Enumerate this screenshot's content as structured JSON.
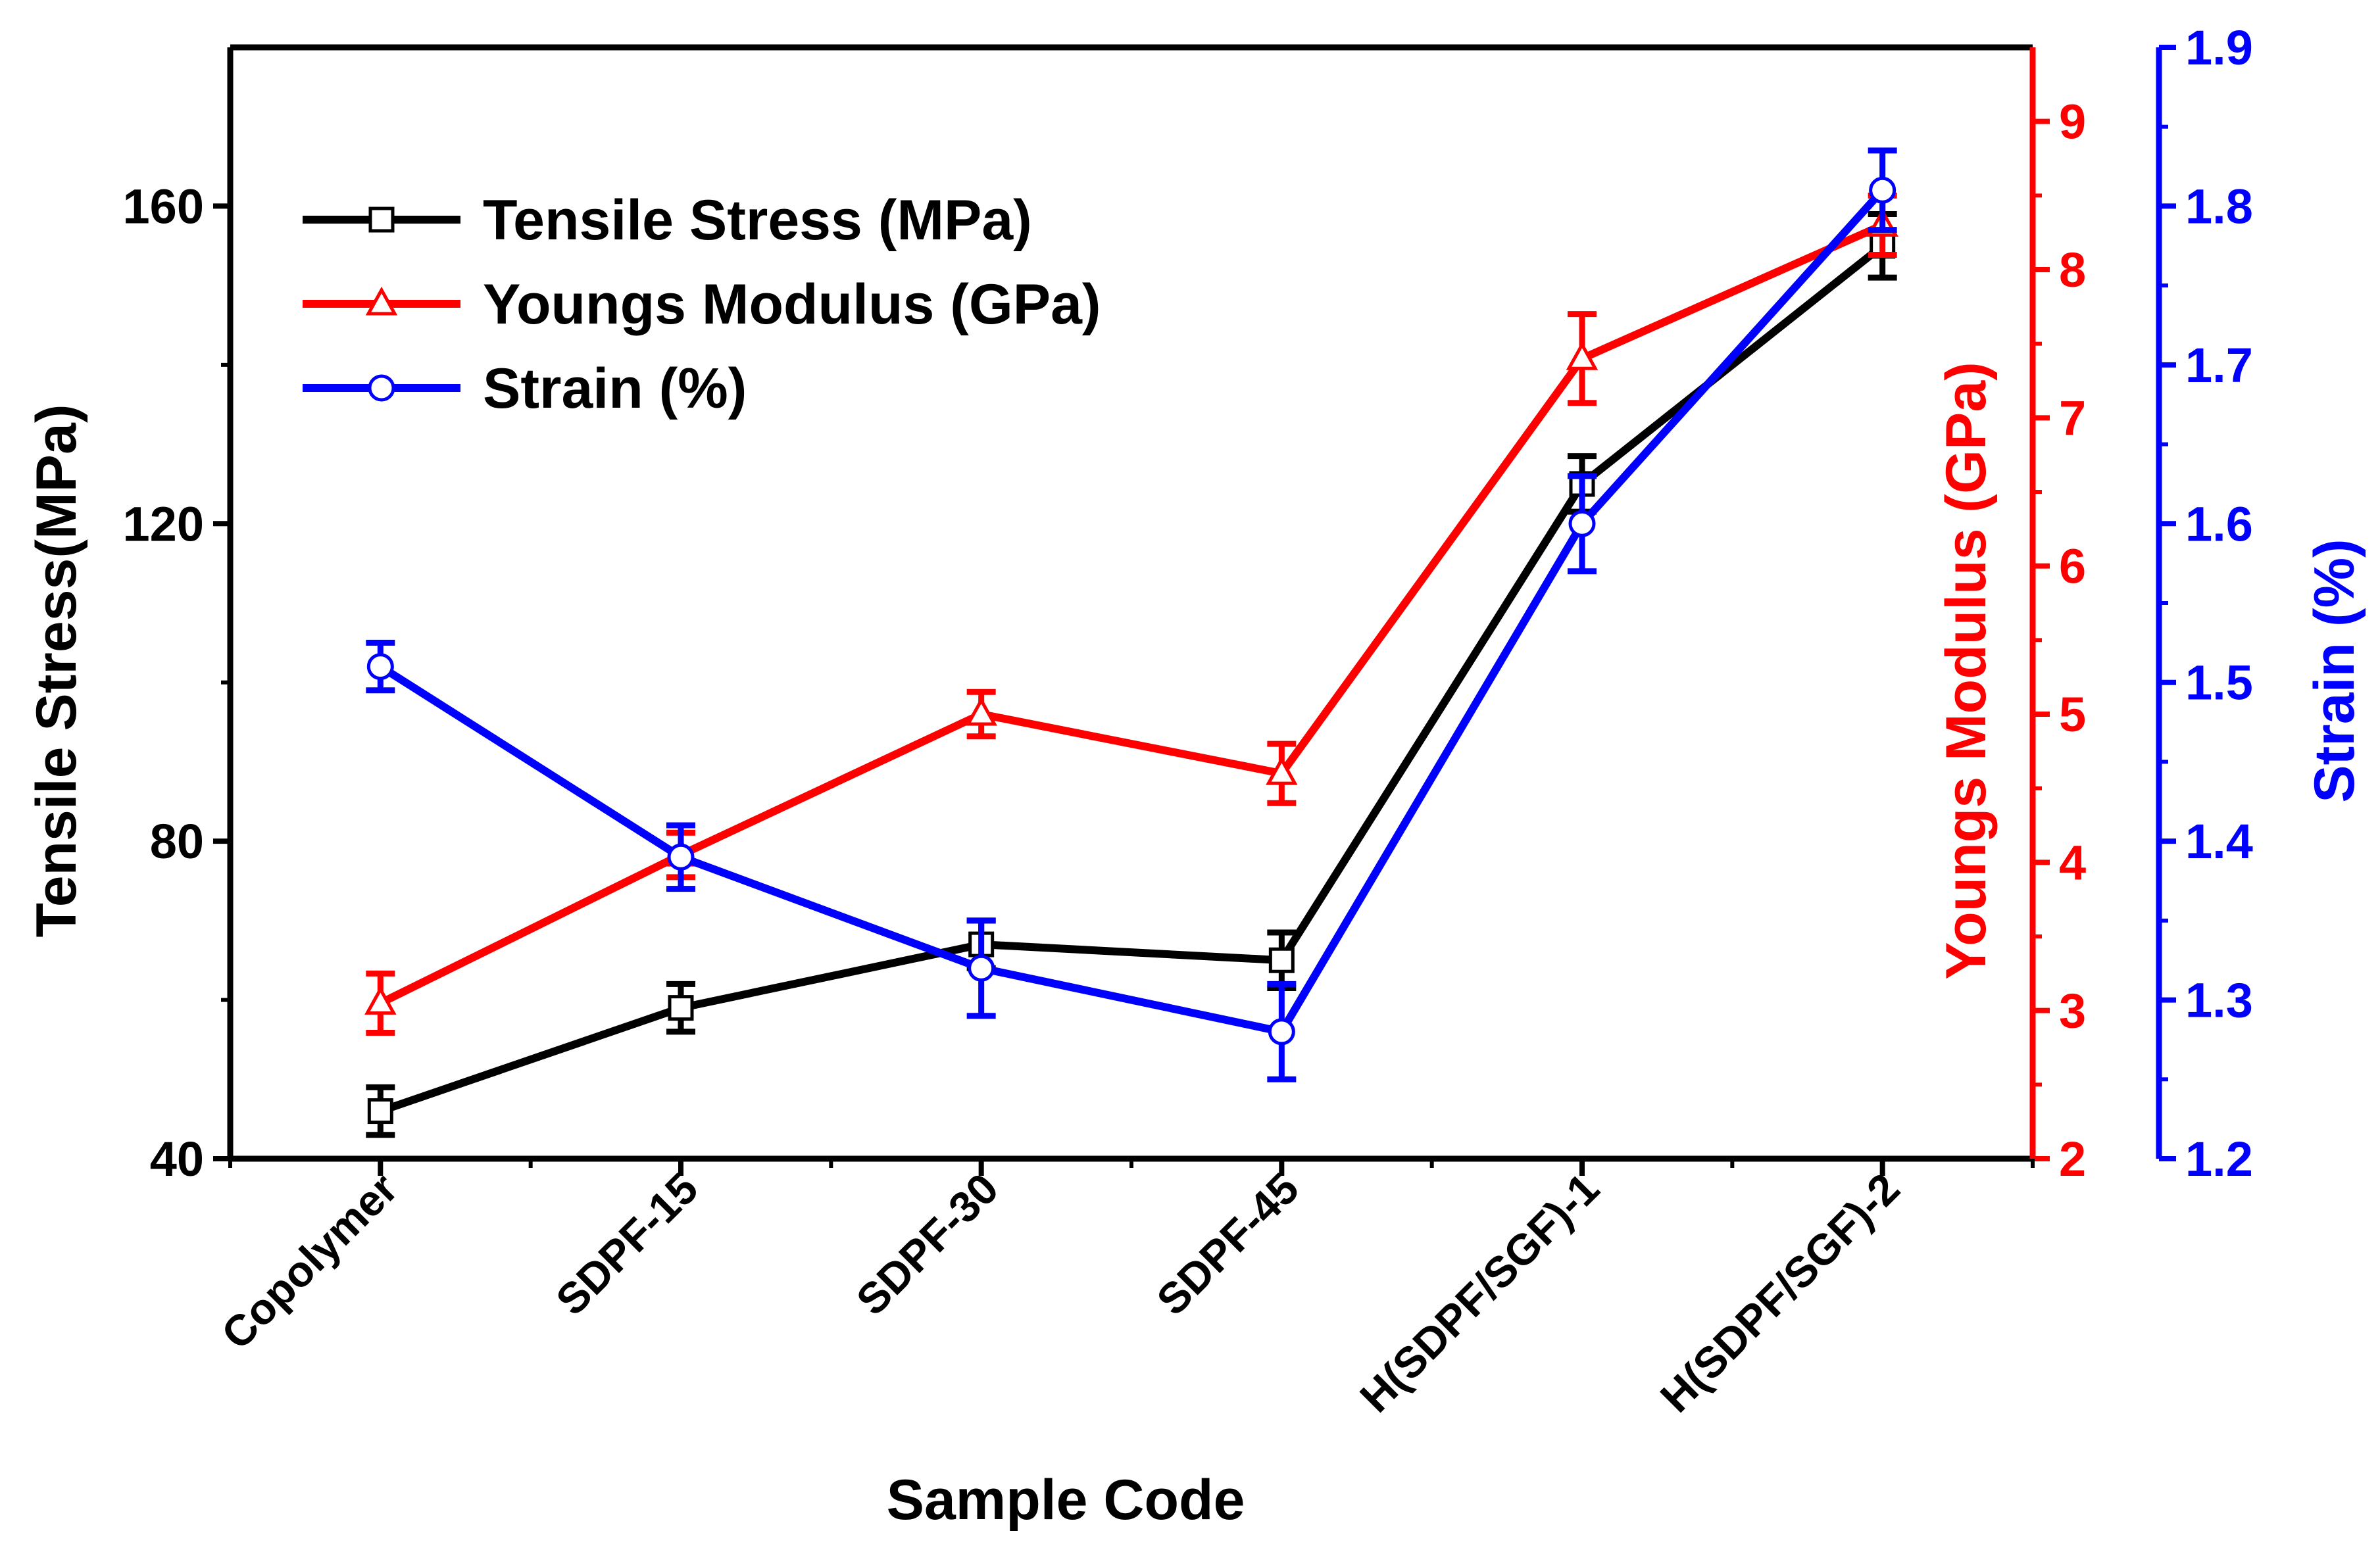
{
  "chart_data": {
    "type": "line",
    "xlabel": "Sample Code",
    "categories": [
      "Copolymer",
      "SDPF-15",
      "SDPF-30",
      "SDPF-45",
      "H(SDPF/SGF)-1",
      "H(SDPF/SGF)-2"
    ],
    "axes": {
      "left": {
        "label": "Tensile Stress(MPa)",
        "range": [
          40,
          180
        ],
        "ticks": [
          40,
          80,
          120,
          160
        ],
        "tick_labels": [
          "40",
          "80",
          "120",
          "160"
        ],
        "color": "#000000"
      },
      "red": {
        "label": "Youngs Modulus (GPa)",
        "range": [
          2,
          9.5
        ],
        "ticks": [
          2,
          3,
          4,
          5,
          6,
          7,
          8,
          9
        ],
        "tick_labels": [
          "2",
          "3",
          "4",
          "5",
          "6",
          "7",
          "8",
          "9"
        ],
        "color": "#ff0000"
      },
      "blue": {
        "label": "Strain (%)",
        "range": [
          1.2,
          1.9
        ],
        "ticks": [
          1.2,
          1.3,
          1.4,
          1.5,
          1.6,
          1.7,
          1.8,
          1.9
        ],
        "tick_labels": [
          "1.2",
          "1.3",
          "1.4",
          "1.5",
          "1.6",
          "1.7",
          "1.8",
          "1.9"
        ],
        "color": "#0000ff"
      }
    },
    "series": [
      {
        "name": "Tensile Stress (MPa)",
        "axis": "left",
        "color": "#000000",
        "marker": "square",
        "values": [
          46,
          59,
          67,
          65,
          125,
          155
        ],
        "errors": [
          3,
          3,
          3,
          3.5,
          3.5,
          4
        ]
      },
      {
        "name": "Youngs Modulus (GPa)",
        "axis": "red",
        "color": "#ff0000",
        "marker": "triangle",
        "values": [
          3.05,
          4.05,
          5.0,
          4.6,
          7.4,
          8.3
        ],
        "errors": [
          0.2,
          0.15,
          0.15,
          0.2,
          0.3,
          0.2
        ]
      },
      {
        "name": "Strain (%)",
        "axis": "blue",
        "color": "#0000ff",
        "marker": "circle",
        "values": [
          1.51,
          1.39,
          1.32,
          1.28,
          1.6,
          1.81
        ],
        "errors": [
          0.015,
          0.02,
          0.03,
          0.03,
          0.03,
          0.025
        ]
      }
    ],
    "legend_position": "top-left"
  }
}
